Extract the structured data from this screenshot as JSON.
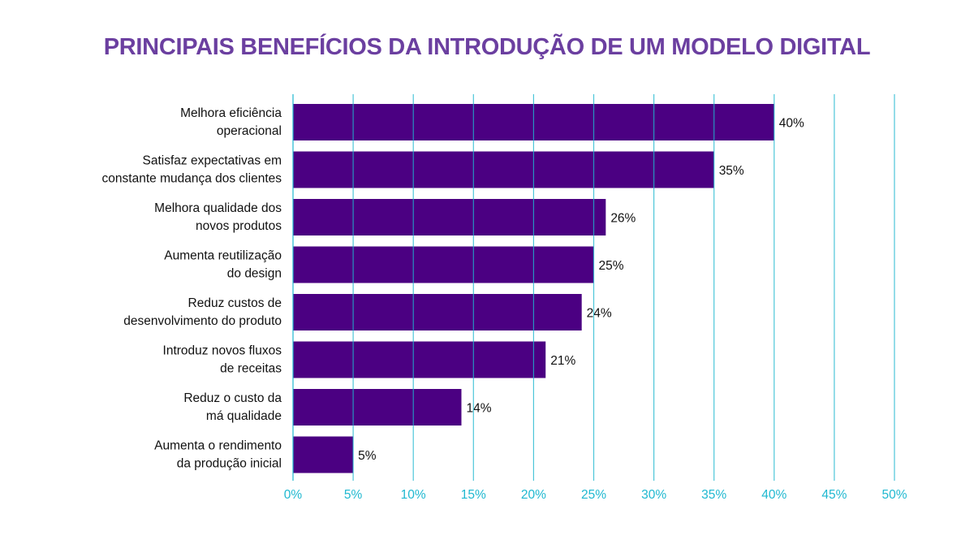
{
  "chart_data": {
    "type": "bar",
    "orientation": "horizontal",
    "title": "PRINCIPAIS BENEFÍCIOS DA INTRODUÇÃO DE UM MODELO DIGITAL",
    "categories": [
      [
        "Melhora eficiência",
        "operacional"
      ],
      [
        "Satisfaz expectativas em",
        "constante mudança dos clientes"
      ],
      [
        "Melhora qualidade dos",
        "novos produtos"
      ],
      [
        "Aumenta reutilização",
        "do design"
      ],
      [
        "Reduz custos de",
        "desenvolvimento do produto"
      ],
      [
        "Introduz novos fluxos",
        "de receitas"
      ],
      [
        "Reduz o custo da",
        "má qualidade"
      ],
      [
        "Aumenta o rendimento",
        "da produção inicial"
      ]
    ],
    "values": [
      40,
      35,
      26,
      25,
      24,
      21,
      14,
      5
    ],
    "data_labels": [
      "40%",
      "35%",
      "26%",
      "25%",
      "24%",
      "21%",
      "14%",
      "5%"
    ],
    "xlim": [
      0,
      50
    ],
    "xticks": [
      0,
      5,
      10,
      15,
      20,
      25,
      30,
      35,
      40,
      45,
      50
    ],
    "xtick_labels": [
      "0%",
      "5%",
      "10%",
      "15%",
      "20%",
      "25%",
      "30%",
      "35%",
      "40%",
      "45%",
      "50%"
    ],
    "grid": "vertical",
    "colors": {
      "bar": "#4b0082",
      "grid": "#1fb8d0",
      "title": "#6b3fa0",
      "ticks": "#1fb8d0"
    }
  }
}
